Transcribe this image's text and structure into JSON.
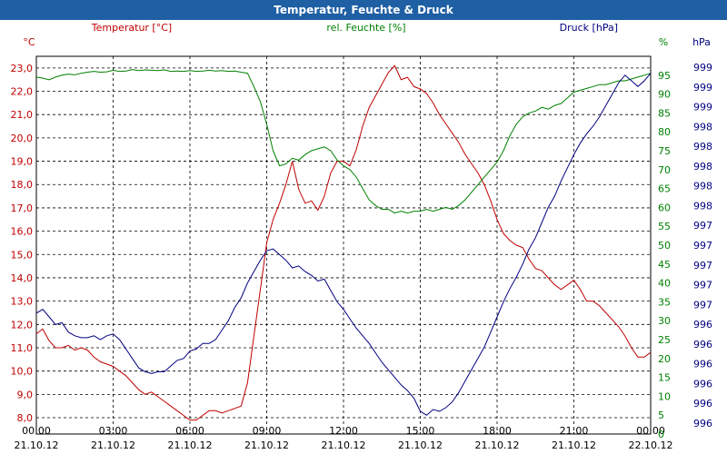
{
  "window": {
    "title": "Temperatur, Feuchte & Druck"
  },
  "chart_data": {
    "type": "line",
    "title": "Temperatur, Feuchte & Druck",
    "grid": true,
    "x": {
      "range": [
        "21.10.12 00:00",
        "22.10.12 00:00"
      ],
      "ticks": [
        {
          "time": "00:00",
          "date": "21.10.12"
        },
        {
          "time": "03:00",
          "date": "21.10.12"
        },
        {
          "time": "06:00",
          "date": "21.10.12"
        },
        {
          "time": "09:00",
          "date": "21.10.12"
        },
        {
          "time": "12:00",
          "date": "21.10.12"
        },
        {
          "time": "15:00",
          "date": "21.10.12"
        },
        {
          "time": "18:00",
          "date": "21.10.12"
        },
        {
          "time": "21:00",
          "date": "21.10.12"
        },
        {
          "time": "00:00",
          "date": "22.10.12"
        }
      ]
    },
    "axes": {
      "temperature": {
        "label": "Temperatur [°C]",
        "unit": "°C",
        "color": "#c00000",
        "ylim": [
          7.3,
          23.5
        ],
        "ticks": [
          "8,0",
          "9,0",
          "10,0",
          "11,0",
          "12,0",
          "13,0",
          "14,0",
          "15,0",
          "16,0",
          "17,0",
          "18,0",
          "19,0",
          "20,0",
          "21,0",
          "22,0",
          "23,0"
        ]
      },
      "humidity": {
        "label": "rel. Feuchte [%]",
        "unit": "%",
        "color": "#008000",
        "ylim": [
          0,
          100
        ],
        "ticks": [
          "0",
          "5",
          "10",
          "15",
          "20",
          "25",
          "30",
          "35",
          "40",
          "45",
          "50",
          "55",
          "60",
          "65",
          "70",
          "75",
          "80",
          "85",
          "90",
          "95"
        ]
      },
      "pressure": {
        "label": "Druck [hPa]",
        "unit": "hPa",
        "color": "#000080",
        "ticks": [
          "996",
          "996",
          "996",
          "996",
          "996",
          "996",
          "997",
          "997",
          "997",
          "997",
          "997",
          "998",
          "998",
          "998",
          "998",
          "998",
          "999",
          "999",
          "999"
        ]
      }
    },
    "series": [
      {
        "name": "Temperatur [°C]",
        "axis": "temperature",
        "color": "#c00000",
        "x": [
          0,
          0.25,
          0.5,
          0.75,
          1,
          1.25,
          1.5,
          1.75,
          2,
          2.25,
          2.5,
          2.75,
          3,
          3.25,
          3.5,
          3.75,
          4,
          4.25,
          4.5,
          4.75,
          5,
          5.25,
          5.5,
          5.75,
          6,
          6.25,
          6.5,
          6.75,
          7,
          7.25,
          7.5,
          7.75,
          8,
          8.25,
          8.5,
          8.75,
          9,
          9.25,
          9.5,
          9.75,
          10,
          10.25,
          10.5,
          10.75,
          11,
          11.25,
          11.5,
          11.75,
          12,
          12.25,
          12.5,
          12.75,
          13,
          13.25,
          13.5,
          13.75,
          14,
          14.25,
          14.5,
          14.75,
          15,
          15.25,
          15.5,
          15.75,
          16,
          16.25,
          16.5,
          16.75,
          17,
          17.25,
          17.5,
          17.75,
          18,
          18.25,
          18.5,
          18.75,
          19,
          19.25,
          19.5,
          19.75,
          20,
          20.25,
          20.5,
          20.75,
          21,
          21.25,
          21.5,
          21.75,
          22,
          22.25,
          22.5,
          22.75,
          23,
          23.25,
          23.5,
          23.75,
          24
        ],
        "y": [
          11.6,
          11.8,
          11.3,
          11.0,
          11.0,
          11.1,
          10.9,
          11.0,
          10.9,
          10.6,
          10.4,
          10.3,
          10.2,
          10.0,
          9.8,
          9.5,
          9.2,
          9.0,
          9.1,
          8.9,
          8.7,
          8.5,
          8.3,
          8.1,
          7.9,
          7.9,
          8.1,
          8.3,
          8.3,
          8.2,
          8.3,
          8.4,
          8.5,
          9.5,
          11.5,
          13.5,
          15.5,
          16.5,
          17.2,
          18.0,
          19.0,
          17.8,
          17.2,
          17.3,
          16.9,
          17.5,
          18.5,
          19.0,
          19.0,
          18.8,
          19.5,
          20.5,
          21.3,
          21.8,
          22.3,
          22.8,
          23.1,
          22.5,
          22.6,
          22.2,
          22.1,
          21.9,
          21.5,
          21.0,
          20.6,
          20.2,
          19.8,
          19.3,
          18.9,
          18.5,
          18.0,
          17.3,
          16.5,
          15.9,
          15.6,
          15.4,
          15.3,
          14.8,
          14.4,
          14.3,
          14.0,
          13.7,
          13.5,
          13.7,
          13.9,
          13.5,
          13.0,
          13.0,
          12.8,
          12.5,
          12.2,
          11.9,
          11.5,
          11.0,
          10.6,
          10.6,
          10.8
        ],
        "points": "0:11.6,0.25:11.8,0.5:11.3,0.75:11.0,1:11.0,1.25:11.1,1.5:10.9,1.75:11.0,2:10.9,2.25:10.6,2.5:10.4,2.75:10.3,3:10.2,3.25:10.0,3.5:9.8,3.75:9.5,4:9.2,4.25:9.0,4.5:9.1,4.75:8.9,5:8.7,5.25:8.5,5.5:8.3,5.75:8.1,6:7.9,6.25:7.9,6.5:8.1,6.75:8.3,7:8.3,7.25:8.2,7.5:8.3,7.75:8.4,8:8.5,8.25:9.5,8.5:11.5,8.75:13.5,9:15.5,9.25:16.5,9.5:17.2,9.75:18.0,10:19.0,10.25:17.8,10.5:17.2,10.75:17.3,11:16.9,11.25:17.5,11.5:18.5,11.75:19.0,12:19.0,12.25:18.8,12.5:19.5,12.75:20.5,13:21.3,13.25:21.8,13.5:22.3,13.75:22.8,14:23.1,14.25:22.5,14.5:22.6,14.75:22.2,15:22.1,15.25:21.9,15.5:21.5,15.75:21.0,16:20.6,16.25:20.2,16.5:19.8,16.75:19.3,17:18.9,17.25:18.5,17.5:18.0,17.75:17.3,18:16.5,18.25:15.9,18.5:15.6,18.75:15.4,19:15.3,19.25:14.8,19.5:14.4,19.75:14.3,20:14.0,20.25:13.7,20.5:13.5,20.75:13.7,21:13.9,21.25:13.5,21.5:13.0,21.75:13.0,22:12.8,22.25:12.5,22.5:12.2,22.75:11.9,23:11.5,23.25:11.0,23.5:10.6,23.75:10.6,24:10.8"
      },
      {
        "name": "rel. Feuchte [%]",
        "axis": "humidity",
        "color": "#008000",
        "points": "0:94.5,0.25:94.2,0.5:93.8,0.75:94.5,1:95.0,1.25:95.3,1.5:95.1,1.75:95.5,2:95.8,2.25:96.0,2.5:95.8,2.75:95.9,3:96.3,3.25:96.0,3.5:96.1,3.75:96.5,4:96.2,4.25:96.4,4.5:96.3,4.75:96.2,5:96.4,5.25:96.0,5.5:96.1,5.75:96.0,6:96.2,6.25:96.0,6.5:96.1,6.75:96.3,7:96.1,7.25:96.2,7.5:96.0,7.75:96.1,8:95.8,8.25:95.5,8.5:92.0,8.75:88.0,9:82.0,9.25:75.0,9.5:71.0,9.75:71.5,10:73.0,10.25:72.5,10.5:74.0,10.75:75.0,11:75.5,11.25:76.0,11.5:75.0,11.75:72.5,12:71.0,12.25:70.0,12.5:68.0,12.75:65.0,13:62.0,13.25:60.5,13.5:59.5,13.75:59.5,14:58.5,14.25:59.0,14.5:58.5,14.75:59.0,15:59.0,15.25:59.5,15.5:59.0,15.75:59.5,16:60.0,16.25:59.5,16.5:60.5,16.75:62.0,17:64.0,17.25:66.0,17.5:68.0,17.75:70.0,18:72.0,18.25:75.0,18.5:79.0,18.75:82.0,19:84.0,19.25:85.0,19.5:85.5,19.75:86.5,20:86.0,20.25:87.0,20.5:87.5,20.75:89.0,21:90.5,21.25:91.0,21.5:91.5,21.75:92.0,22:92.5,22.25:92.5,22.5:93.0,22.75:93.5,23:93.5,23.25:94.0,23.5:94.5,23.75:95.0,24:95.5"
      },
      {
        "name": "Druck [hPa]",
        "axis": "pressure",
        "color": "#000080",
        "points": "0:32.0,0.25:33.0,0.5:31.0,0.75:29.0,1:29.5,1.25:27.0,1.5:26.0,1.75:25.5,2:25.5,2.25:26.0,2.5:25.0,2.75:26.0,3:26.5,3.25:25.0,3.5:22.5,3.75:20.0,4:17.5,4.25:16.5,4.5:16.0,4.75:16.5,5:16.5,5.25:18.0,5.5:19.5,5.75:20.0,6:22.0,6.25:22.5,6.5:24.0,6.75:24.0,7:25.0,7.25:27.5,7.5:30.0,7.75:33.5,8:36.0,8.25:40.0,8.5:43.0,8.75:46.0,9:48.5,9.25:49.0,9.5:47.5,9.75:46.0,10:44.0,10.25:44.5,10.5:43.0,10.75:42.0,11:40.5,11.25:41.0,11.5:38.0,11.75:35.0,12:33.0,12.25:30.5,12.5:28.0,12.75:26.0,13:24.0,13.25:21.5,13.5:19.0,13.75:17.0,14:15.0,14.25:13.0,14.5:11.5,14.75:9.5,15:6.0,15.25:5.0,15.5:6.5,15.75:6.0,16:7.0,16.25:8.5,16.5:11.0,16.75:14.0,17:17.0,17.25:20.0,17.5:23.0,17.75:27.0,18:31.0,18.25:35.0,18.5:38.5,18.75:41.5,19:45.0,19.25:49.0,19.5:52.0,19.75:56.0,20:60.0,20.25:63.0,20.5:67.0,20.75:70.5,21:74.0,21.25:77.0,21.5:79.5,21.75:81.5,22:84.0,22.25:87.0,22.5:90.0,22.75:93.0,23:95.0,23.25:93.5,23.5:92.0,23.75:93.5,24:95.5"
      }
    ]
  }
}
